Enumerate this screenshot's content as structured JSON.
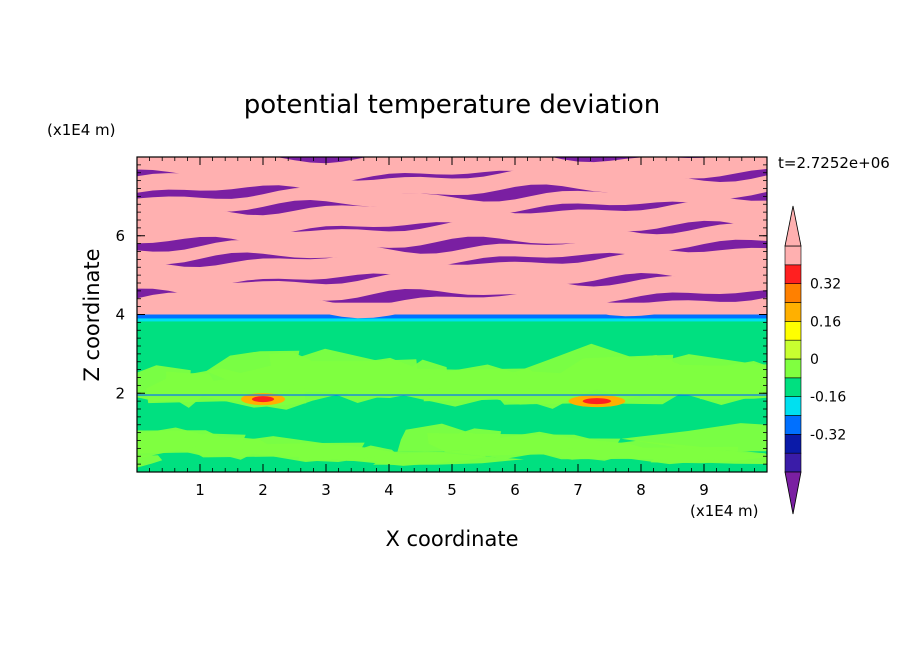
{
  "chart_data": {
    "type": "heatmap",
    "title": "potential temperature deviation",
    "time_label": "t=2.7252e+06",
    "xlabel": "X coordinate",
    "ylabel": "Z coordinate",
    "x_unit": "(x1E4 m)",
    "y_unit": "(x1E4 m)",
    "xlim": [
      0,
      10
    ],
    "ylim": [
      0,
      8
    ],
    "x_ticks": [
      "1",
      "2",
      "3",
      "4",
      "5",
      "6",
      "7",
      "8",
      "9"
    ],
    "y_ticks": [
      "2",
      "4",
      "6"
    ],
    "colorbar": {
      "levels": [
        -0.48,
        -0.4,
        -0.32,
        -0.24,
        -0.16,
        -0.08,
        0,
        0.08,
        0.16,
        0.24,
        0.32,
        0.4,
        0.48
      ],
      "labels": [
        "0.32",
        "0.16",
        "0",
        "-0.16",
        "-0.32"
      ],
      "colors_low_to_high": [
        "#7a1fa2",
        "#3a1ca8",
        "#0a1aa8",
        "#0070ff",
        "#00e0f0",
        "#00e080",
        "#80ff40",
        "#c8ff30",
        "#ffff00",
        "#ffb000",
        "#ff8000",
        "#ff2020",
        "#ffb0b0"
      ]
    },
    "layers": [
      {
        "z_range": [
          4.0,
          8.0
        ],
        "pattern": "alternating bands",
        "colors": [
          "#7a1fa2",
          "#ffb0b0"
        ]
      },
      {
        "z_range": [
          3.85,
          4.0
        ],
        "pattern": "thin band",
        "colors": [
          "#0070ff",
          "#00e0f0"
        ]
      },
      {
        "z_range": [
          0.0,
          3.85
        ],
        "pattern": "mixed",
        "colors": [
          "#00e080",
          "#80ff40"
        ]
      }
    ]
  }
}
